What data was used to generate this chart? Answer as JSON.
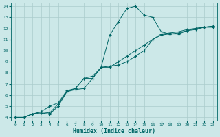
{
  "xlabel": "Humidex (Indice chaleur)",
  "bg_color": "#cce8e8",
  "grid_color": "#aacccc",
  "line_color": "#006666",
  "xlim": [
    -0.5,
    23.5
  ],
  "ylim": [
    3.7,
    14.3
  ],
  "xticks": [
    0,
    1,
    2,
    3,
    4,
    5,
    6,
    7,
    8,
    9,
    10,
    11,
    12,
    13,
    14,
    15,
    16,
    17,
    18,
    19,
    20,
    21,
    22,
    23
  ],
  "yticks": [
    4,
    5,
    6,
    7,
    8,
    9,
    10,
    11,
    12,
    13,
    14
  ],
  "line1_x": [
    0,
    1,
    2,
    3,
    4,
    5,
    6,
    7,
    8,
    9,
    10,
    11,
    12,
    13,
    14,
    15,
    16,
    17,
    18,
    19,
    20,
    21,
    22,
    23
  ],
  "line1_y": [
    4,
    4,
    4.3,
    4.4,
    4.3,
    5.0,
    6.3,
    6.5,
    6.6,
    7.5,
    8.5,
    11.4,
    12.6,
    13.8,
    14.0,
    13.2,
    13.0,
    11.7,
    11.5,
    11.5,
    11.8,
    12.0,
    12.1,
    12.1
  ],
  "line2_x": [
    0,
    1,
    2,
    3,
    4,
    5,
    6,
    7,
    8,
    9,
    10,
    11,
    12,
    13,
    14,
    15,
    16,
    17,
    18,
    19,
    20,
    21,
    22,
    23
  ],
  "line2_y": [
    4,
    4,
    4.3,
    4.5,
    4.4,
    5.2,
    6.3,
    6.6,
    7.5,
    7.7,
    8.5,
    8.6,
    8.7,
    9.0,
    9.5,
    10.0,
    11.0,
    11.5,
    11.6,
    11.7,
    11.9,
    12.0,
    12.1,
    12.2
  ],
  "line3_x": [
    0,
    1,
    2,
    3,
    4,
    5,
    6,
    7,
    8,
    9,
    10,
    11,
    12,
    13,
    14,
    15,
    16,
    17,
    18,
    19,
    20,
    21,
    22,
    23
  ],
  "line3_y": [
    4,
    4,
    4.3,
    4.5,
    5.0,
    5.3,
    6.4,
    6.6,
    7.5,
    7.5,
    8.5,
    8.5,
    9.0,
    9.5,
    10.0,
    10.5,
    11.0,
    11.4,
    11.5,
    11.6,
    11.8,
    11.9,
    12.1,
    12.2
  ]
}
